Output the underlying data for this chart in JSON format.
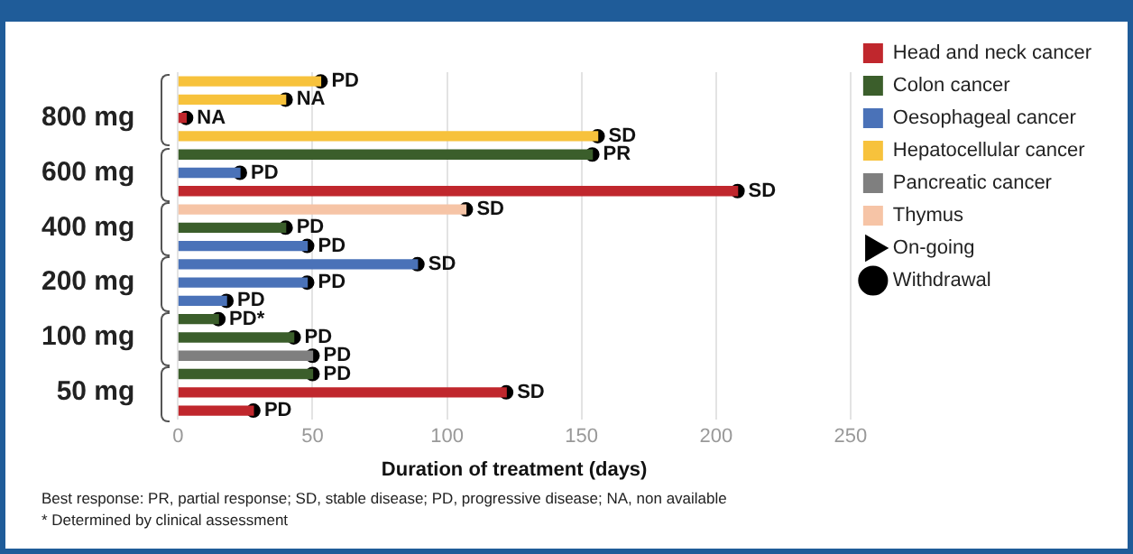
{
  "chart_data": {
    "type": "bar",
    "orientation": "horizontal",
    "stacked": true,
    "categories": [
      null,
      null,
      "800 mg",
      null,
      null,
      "600 mg",
      null,
      null,
      "400 mg",
      null,
      null,
      "200 mg",
      null,
      null,
      "100 mg",
      null,
      null,
      "50 mg",
      null
    ],
    "series": [
      {
        "name": "Head and neck cancer",
        "color": "#c0272d",
        "values": [
          null,
          null,
          3,
          null,
          null,
          null,
          208,
          null,
          null,
          null,
          null,
          null,
          null,
          null,
          null,
          null,
          null,
          122,
          28
        ]
      },
      {
        "name": "Colon cancer",
        "color": "#3b5e2b",
        "values": [
          null,
          null,
          null,
          null,
          154,
          null,
          null,
          null,
          40,
          null,
          null,
          null,
          null,
          15,
          43,
          null,
          50,
          null,
          null
        ]
      },
      {
        "name": "Oesophageal cancer",
        "color": "#4a72b8",
        "values": [
          null,
          null,
          null,
          null,
          null,
          23,
          null,
          null,
          null,
          48,
          89,
          48,
          18,
          null,
          null,
          null,
          null,
          null,
          null
        ]
      },
      {
        "name": "Hepatocellular cancer",
        "color": "#f7c23c",
        "values": [
          53,
          40,
          null,
          156,
          null,
          null,
          null,
          null,
          null,
          null,
          null,
          null,
          null,
          null,
          null,
          null,
          null,
          null,
          null
        ]
      },
      {
        "name": "Pancreatic cancer",
        "color": "#7f7f7f",
        "values": [
          null,
          null,
          null,
          null,
          null,
          null,
          null,
          null,
          null,
          null,
          null,
          null,
          null,
          null,
          null,
          50,
          null,
          null,
          null
        ]
      },
      {
        "name": "Thymus",
        "color": "#f6c4a6",
        "values": [
          null,
          null,
          null,
          null,
          null,
          null,
          null,
          107,
          null,
          null,
          null,
          null,
          null,
          null,
          null,
          null,
          null,
          null,
          null
        ]
      },
      {
        "name": "On-going",
        "type": "scatter",
        "color": "#000000",
        "marker": "triangle",
        "values": [
          null,
          null,
          null,
          null,
          null,
          null,
          null,
          null,
          null,
          null,
          null,
          null,
          null,
          null,
          null,
          null,
          null,
          null,
          null
        ]
      },
      {
        "name": "Withdrawal",
        "type": "scatter",
        "color": "#000000",
        "marker": "circle",
        "values": [
          53,
          40,
          3,
          156,
          154,
          23,
          208,
          107,
          40,
          48,
          89,
          48,
          18,
          15,
          43,
          50,
          50,
          122,
          28
        ],
        "value_labels": [
          "PD",
          "NA",
          "NA",
          "SD",
          "PR",
          "PD",
          "SD",
          "SD",
          "PD",
          "PD",
          "SD",
          "PD",
          "PD",
          "PD*",
          "PD",
          "PD",
          "PD",
          "SD",
          "PD"
        ]
      }
    ],
    "xlim": [
      0,
      250
    ],
    "xticks": [
      0,
      50,
      100,
      150,
      200,
      250
    ],
    "xlabel": "Duration of treatment (days)",
    "grid": "x",
    "legend": "top right",
    "annotations": [
      "Best response: PR, partial response; SD, stable disease; PD, progressive disease; NA, non available",
      "* Determined by clinical assessment"
    ]
  }
}
